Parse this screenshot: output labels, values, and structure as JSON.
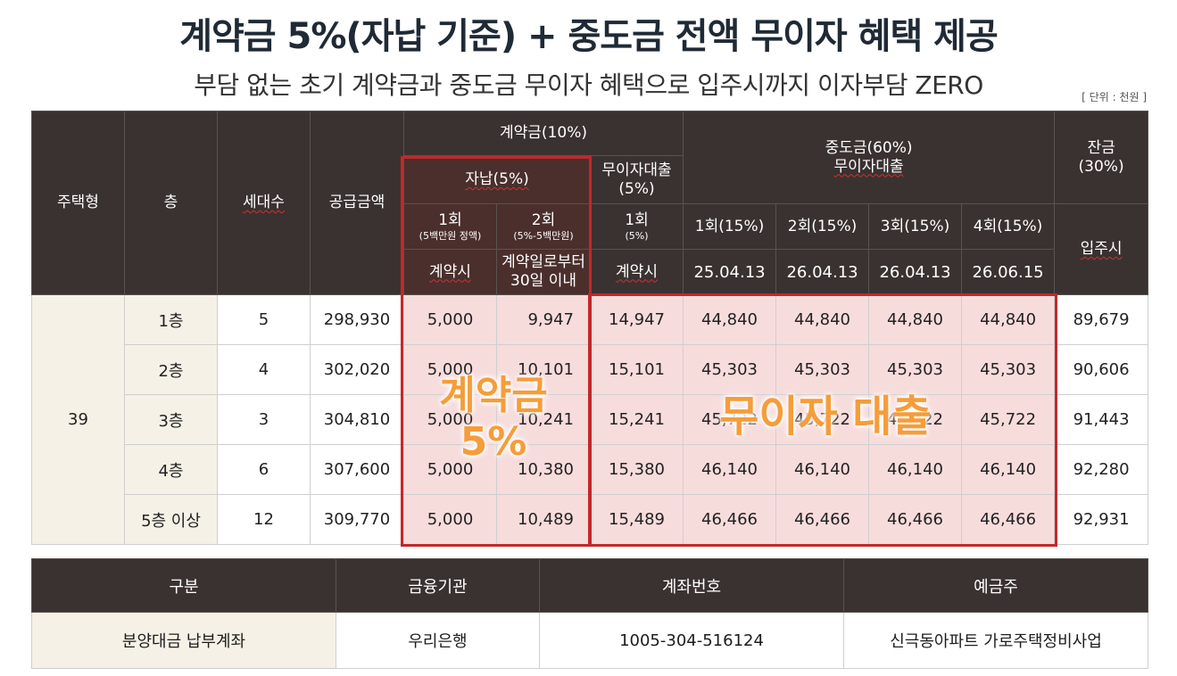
{
  "title": "계약금 5%(자납 기준) + 중도금 전액 무이자 혜택 제공",
  "subtitle": "부담 없는 초기 계약금과 중도금 무이자 혜택으로 입주시까지 이자부담 ZERO",
  "unit": "[ 단위 : 천원 ]",
  "table": {
    "headers": {
      "type": "주택형",
      "floor": "층",
      "units": "세대수",
      "supply_price": "공급금액",
      "deposit": "계약금(10%)",
      "self_pay": "자납(5%)",
      "self_pay_1": "1회",
      "self_pay_1_note": "(5백만원 정액)",
      "self_pay_2": "2회",
      "self_pay_2_note": "(5%-5백만원)",
      "self_pay_1_when": "계약시",
      "self_pay_2_when_1": "계약일로부터",
      "self_pay_2_when_2": "30일 이내",
      "free_loan_deposit": "무이자대출",
      "free_loan_deposit_pct": "(5%)",
      "free_loan_1": "1회",
      "free_loan_1_note": "(5%)",
      "free_loan_when": "계약시",
      "interim": "중도금(60%)",
      "interim_loan": "무이자대출",
      "interim_rounds": [
        "1회(15%)",
        "2회(15%)",
        "3회(15%)",
        "4회(15%)"
      ],
      "interim_dates": [
        "25.04.13",
        "26.04.13",
        "26.04.13",
        "26.06.15"
      ],
      "balance": "잔금",
      "balance_pct": "(30%)",
      "balance_when": "입주시"
    },
    "type_value": "39",
    "rows": [
      {
        "floor": "1층",
        "units": "5",
        "supply": "298,930",
        "d1": "5,000",
        "d2": "9,947",
        "loan": "14,947",
        "i1": "44,840",
        "i2": "44,840",
        "i3": "44,840",
        "i4": "44,840",
        "balance": "89,679"
      },
      {
        "floor": "2층",
        "units": "4",
        "supply": "302,020",
        "d1": "5,000",
        "d2": "10,101",
        "loan": "15,101",
        "i1": "45,303",
        "i2": "45,303",
        "i3": "45,303",
        "i4": "45,303",
        "balance": "90,606"
      },
      {
        "floor": "3층",
        "units": "3",
        "supply": "304,810",
        "d1": "5,000",
        "d2": "10,241",
        "loan": "15,241",
        "i1": "45,722",
        "i2": "45,722",
        "i3": "45,722",
        "i4": "45,722",
        "balance": "91,443"
      },
      {
        "floor": "4층",
        "units": "6",
        "supply": "307,600",
        "d1": "5,000",
        "d2": "10,380",
        "loan": "15,380",
        "i1": "46,140",
        "i2": "46,140",
        "i3": "46,140",
        "i4": "46,140",
        "balance": "92,280"
      },
      {
        "floor": "5층 이상",
        "units": "12",
        "supply": "309,770",
        "d1": "5,000",
        "d2": "10,489",
        "loan": "15,489",
        "i1": "46,466",
        "i2": "46,466",
        "i3": "46,466",
        "i4": "46,466",
        "balance": "92,931"
      }
    ]
  },
  "overlay": {
    "deposit_line1": "계약금",
    "deposit_line2": "5%",
    "free_loan": "무이자 대출"
  },
  "account": {
    "headers": [
      "구분",
      "금융기관",
      "계좌번호",
      "예금주"
    ],
    "row": [
      "분양대금 납부계좌",
      "우리은행",
      "1005-304-516124",
      "신극동아파트 가로주택정비사업"
    ]
  },
  "colors": {
    "header_bg": "#3a3230",
    "highlight_red": "#c2282a",
    "overlay_orange": "#f59d3a",
    "pink_cell": "#f7dcdc",
    "beige_cell": "#f6f1e6"
  }
}
